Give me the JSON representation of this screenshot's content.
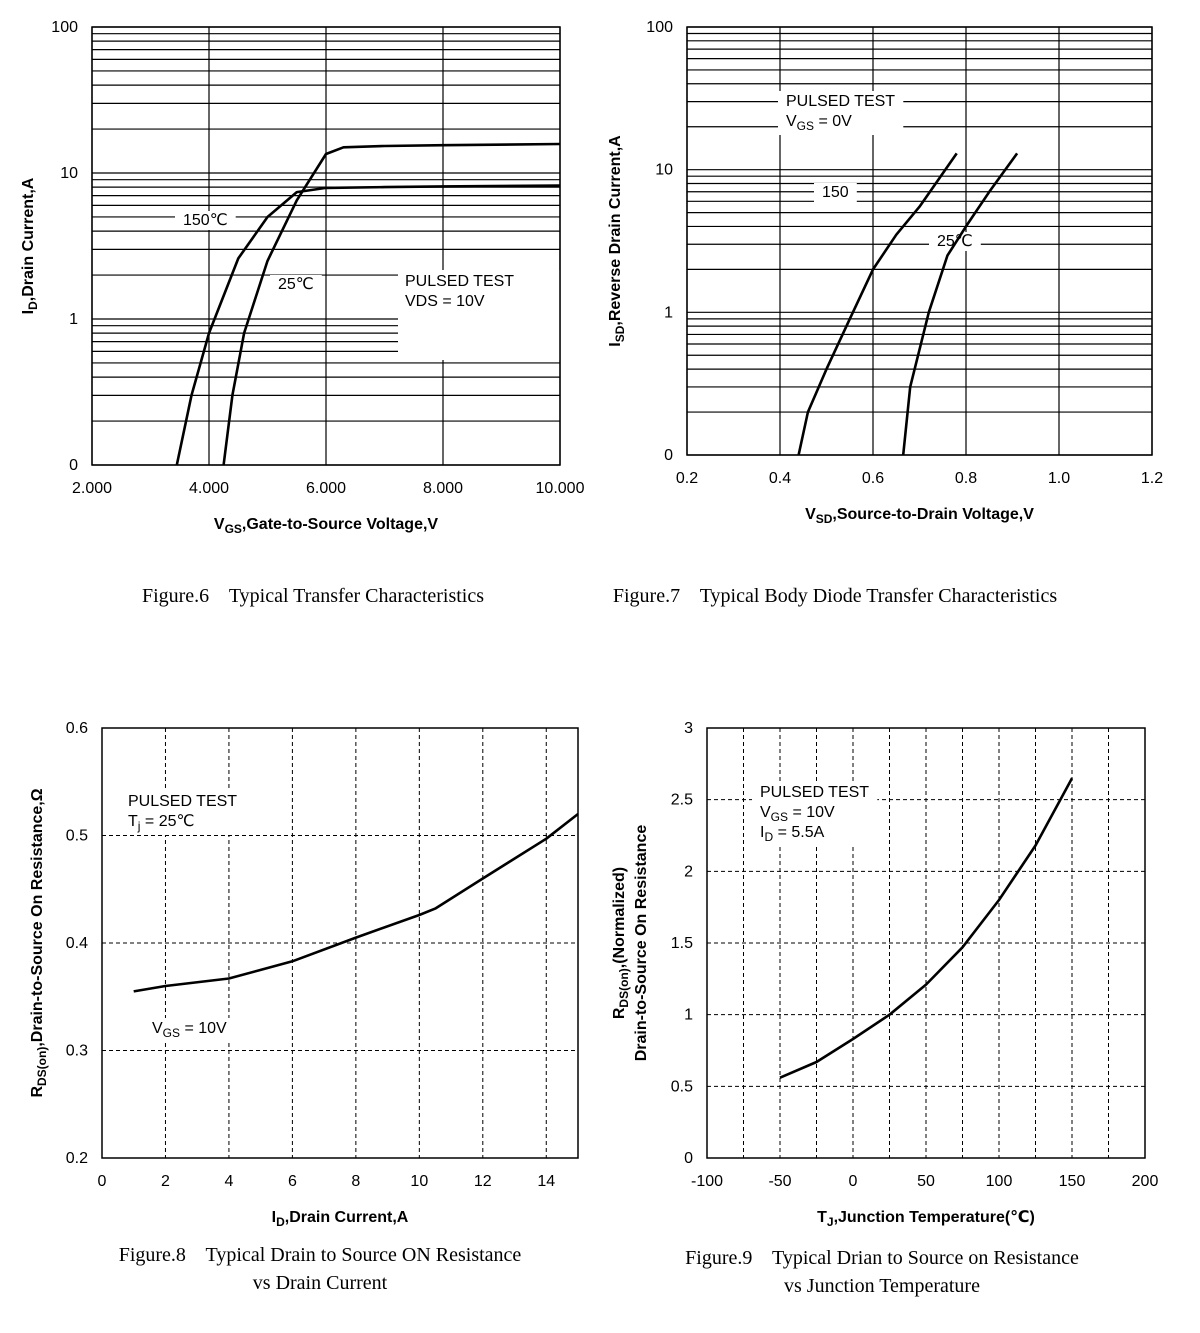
{
  "chart_data": [
    {
      "type": "line",
      "log_y": true,
      "grid": "solid",
      "caption": [
        "Figure.6    Typical Transfer Characteristics"
      ],
      "x_label": [
        {
          "text": "V"
        },
        {
          "text": "GS",
          "sub": true
        },
        {
          "text": ",Gate-to-Source Voltage,V"
        }
      ],
      "y_label": [
        [
          {
            "text": "I"
          },
          {
            "text": "D",
            "sub": true
          },
          {
            "text": ",Drain Current,A"
          }
        ]
      ],
      "xlim": [
        2,
        10
      ],
      "xticks": [
        {
          "value": 2,
          "label": "2.000"
        },
        {
          "value": 4,
          "label": "4.000"
        },
        {
          "value": 6,
          "label": "6.000"
        },
        {
          "value": 8,
          "label": "8.000"
        },
        {
          "value": 10,
          "label": "10.000"
        }
      ],
      "ylim": [
        0.1,
        100
      ],
      "yticks": [
        {
          "value": 0.1,
          "label": "0"
        },
        1,
        10,
        100
      ],
      "y_minor_grid": [
        0.2,
        0.3,
        0.4,
        0.5,
        0.6,
        0.7,
        0.8,
        0.9,
        2,
        3,
        4,
        5,
        6,
        7,
        8,
        9,
        20,
        30,
        40,
        50,
        60,
        70,
        80,
        90
      ],
      "series": [
        {
          "name": "150℃",
          "color": "#000000",
          "x": [
            3.45,
            3.7,
            4.0,
            4.5,
            5.0,
            5.5,
            6.0,
            7.0,
            8.0,
            10.0
          ],
          "values": [
            0.1,
            0.3,
            0.8,
            2.6,
            5.0,
            7.4,
            7.9,
            8.0,
            8.1,
            8.2
          ]
        },
        {
          "name": "25℃",
          "color": "#000000",
          "x": [
            4.25,
            4.4,
            4.6,
            5.0,
            5.5,
            6.0,
            6.3,
            7.0,
            8.0,
            10.0
          ],
          "values": [
            0.1,
            0.3,
            0.8,
            2.5,
            6.5,
            13.5,
            15.0,
            15.3,
            15.5,
            15.8
          ]
        }
      ],
      "annotations": [
        [
          [
            {
              "text": "PULSED TEST"
            }
          ],
          [
            {
              "text": "VDS = 10V"
            }
          ]
        ]
      ]
    },
    {
      "type": "line",
      "log_y": true,
      "grid": "solid",
      "caption": [
        "Figure.7    Typical Body Diode Transfer Characteristics"
      ],
      "x_label": [
        {
          "text": "V"
        },
        {
          "text": "SD",
          "sub": true
        },
        {
          "text": ",Source-to-Drain Voltage,V"
        }
      ],
      "y_label": [
        [
          {
            "text": "I"
          },
          {
            "text": "SD",
            "sub": true
          },
          {
            "text": ",Reverse Drain Current,A"
          }
        ]
      ],
      "xlim": [
        0.2,
        1.2
      ],
      "xticks": [
        0.2,
        0.4,
        0.6,
        0.8,
        {
          "value": 1,
          "label": "1.0"
        },
        1.2
      ],
      "ylim": [
        0.1,
        100
      ],
      "yticks": [
        {
          "value": 0.1,
          "label": "0"
        },
        1,
        10,
        100
      ],
      "y_minor_grid": [
        0.2,
        0.3,
        0.4,
        0.5,
        0.6,
        0.7,
        0.8,
        0.9,
        2,
        3,
        4,
        5,
        6,
        7,
        8,
        9,
        20,
        30,
        40,
        50,
        60,
        70,
        80,
        90
      ],
      "series": [
        {
          "name": "150",
          "color": "#000000",
          "x": [
            0.44,
            0.46,
            0.5,
            0.55,
            0.6,
            0.65,
            0.7,
            0.78
          ],
          "values": [
            0.1,
            0.2,
            0.4,
            0.9,
            2,
            3.5,
            5.5,
            13
          ]
        },
        {
          "name": "25℃",
          "color": "#000000",
          "x": [
            0.665,
            0.68,
            0.72,
            0.76,
            0.8,
            0.85,
            0.91
          ],
          "values": [
            0.1,
            0.3,
            1,
            2.5,
            4,
            7,
            13
          ]
        }
      ],
      "annotations": [
        [
          [
            {
              "text": "PULSED TEST"
            }
          ],
          [
            {
              "text": "V"
            },
            {
              "text": "GS",
              "sub": true
            },
            {
              "text": " = 0V"
            }
          ]
        ]
      ]
    },
    {
      "type": "line",
      "log_y": false,
      "grid": "dashed",
      "caption": [
        "Figure.8    Typical Drain to Source ON Resistance",
        "vs Drain Current"
      ],
      "x_label": [
        {
          "text": "I"
        },
        {
          "text": "D",
          "sub": true
        },
        {
          "text": ",Drain Current,A"
        }
      ],
      "y_label": [
        [
          {
            "text": "R"
          },
          {
            "text": "DS(on)",
            "sub": true
          },
          {
            "text": ",Drain-to-Source On Resistance,Ω"
          }
        ]
      ],
      "xlim": [
        0,
        15
      ],
      "xticks": [
        0,
        2,
        4,
        6,
        8,
        10,
        12,
        14
      ],
      "ylim": [
        0.2,
        0.6
      ],
      "yticks": [
        0.2,
        0.3,
        0.4,
        0.5,
        0.6
      ],
      "series": [
        {
          "color": "#000000",
          "x": [
            1,
            2,
            4,
            5,
            6,
            8,
            10,
            10.5,
            12,
            14,
            15
          ],
          "values": [
            0.355,
            0.36,
            0.367,
            0.375,
            0.383,
            0.405,
            0.426,
            0.432,
            0.46,
            0.497,
            0.52
          ]
        }
      ],
      "annotations": [
        [
          [
            {
              "text": "PULSED TEST"
            }
          ],
          [
            {
              "text": "T"
            },
            {
              "text": "j",
              "sub": true
            },
            {
              "text": " = 25℃"
            }
          ]
        ],
        [
          [
            {
              "text": "V"
            },
            {
              "text": "GS",
              "sub": true
            },
            {
              "text": " = 10V"
            }
          ]
        ]
      ]
    },
    {
      "type": "line",
      "log_y": false,
      "grid": "dashed",
      "caption": [
        "Figure.9    Typical Drian to Source on Resistance",
        "vs Junction Temperature"
      ],
      "x_label": [
        {
          "text": "T"
        },
        {
          "text": "J",
          "sub": true
        },
        {
          "text": ",Junction Temperature(℃)"
        }
      ],
      "y_label": [
        [
          {
            "text": "R"
          },
          {
            "text": "DS(on)",
            "sub": true
          },
          {
            "text": ",(Normalized)"
          }
        ],
        [
          {
            "text": "Drain-to-Source On Resistance"
          }
        ]
      ],
      "xlim": [
        -100,
        200
      ],
      "xticks": [
        -100,
        -50,
        0,
        50,
        100,
        150,
        200
      ],
      "x_minor_grid": [
        -75,
        -25,
        25,
        75,
        125,
        175
      ],
      "ylim": [
        0,
        3
      ],
      "yticks": [
        0,
        0.5,
        1,
        1.5,
        2,
        2.5,
        3
      ],
      "series": [
        {
          "color": "#000000",
          "x": [
            -50,
            -25,
            0,
            25,
            50,
            75,
            100,
            125,
            150
          ],
          "values": [
            0.56,
            0.67,
            0.83,
            1.0,
            1.21,
            1.47,
            1.8,
            2.18,
            2.65
          ]
        }
      ],
      "annotations": [
        [
          [
            {
              "text": "PULSED TEST"
            }
          ],
          [
            {
              "text": "V"
            },
            {
              "text": "GS",
              "sub": true
            },
            {
              "text": " = 10V"
            }
          ],
          [
            {
              "text": "I"
            },
            {
              "text": "D",
              "sub": true
            },
            {
              "text": " = 5.5A"
            }
          ]
        ]
      ]
    }
  ]
}
